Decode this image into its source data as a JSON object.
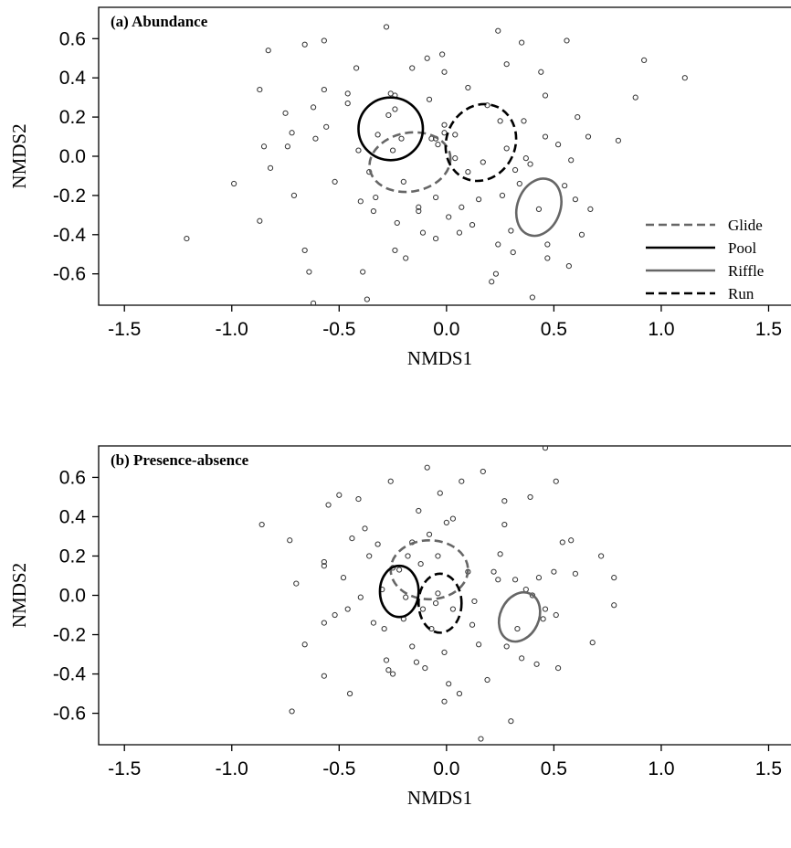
{
  "chart_data": [
    {
      "type": "scatter",
      "title": "(a) Abundance",
      "x_label": "NMDS1",
      "y_label": "NMDS2",
      "xlim": [
        -1.62,
        1.6
      ],
      "ylim": [
        -0.76,
        0.76
      ],
      "xticks": [
        -1.5,
        {
          "value": -1,
          "label": "-1.0"
        },
        -0.5,
        {
          "value": 0,
          "label": "0.0"
        },
        0.5,
        {
          "value": 1,
          "label": "1.0"
        },
        1.5
      ],
      "yticks": [
        -0.6,
        -0.4,
        -0.2,
        {
          "value": 0,
          "label": "0.0"
        },
        0.2,
        0.4,
        0.6
      ],
      "point_color": "#333333",
      "legend": "lower right",
      "x": [
        -1.21,
        -0.99,
        -0.87,
        -0.87,
        -0.85,
        -0.83,
        -0.82,
        -0.75,
        -0.74,
        -0.72,
        -0.71,
        -0.66,
        -0.66,
        -0.64,
        -0.62,
        -0.61,
        -0.62,
        -0.57,
        -0.57,
        -0.56,
        -0.52,
        -0.46,
        -0.46,
        -0.42,
        -0.41,
        -0.4,
        -0.39,
        -0.37,
        -0.36,
        -0.34,
        -0.33,
        -0.32,
        -0.28,
        -0.27,
        -0.26,
        -0.24,
        -0.24,
        -0.25,
        -0.24,
        -0.23,
        -0.21,
        -0.2,
        -0.19,
        -0.16,
        -0.13,
        -0.13,
        -0.11,
        -0.09,
        -0.08,
        -0.07,
        -0.05,
        -0.05,
        -0.05,
        -0.04,
        -0.02,
        -0.01,
        -0.01,
        -0.01,
        0.01,
        0.04,
        0.04,
        0.06,
        0.07,
        0.1,
        0.1,
        0.12,
        0.15,
        0.17,
        0.19,
        0.21,
        0.23,
        0.24,
        0.24,
        0.25,
        0.26,
        0.28,
        0.28,
        0.3,
        0.31,
        0.32,
        0.34,
        0.35,
        0.36,
        0.37,
        0.39,
        0.4,
        0.43,
        0.44,
        0.46,
        0.46,
        0.47,
        0.47,
        0.52,
        0.55,
        0.56,
        0.57,
        0.58,
        0.6,
        0.61,
        0.63,
        0.66,
        0.67,
        0.8,
        0.88,
        0.92,
        1.11
      ],
      "values": [
        -0.42,
        -0.14,
        0.34,
        -0.33,
        0.05,
        0.54,
        -0.06,
        0.22,
        0.05,
        0.12,
        -0.2,
        0.57,
        -0.48,
        -0.59,
        0.25,
        0.09,
        -0.75,
        0.59,
        0.34,
        0.15,
        -0.13,
        0.32,
        0.27,
        0.45,
        0.03,
        -0.23,
        -0.59,
        -0.73,
        -0.08,
        -0.28,
        -0.21,
        0.11,
        0.66,
        0.21,
        0.32,
        0.31,
        0.24,
        0.03,
        -0.48,
        -0.34,
        0.09,
        -0.13,
        -0.52,
        0.45,
        -0.28,
        -0.26,
        -0.39,
        0.5,
        0.29,
        0.09,
        0.09,
        -0.42,
        -0.21,
        0.06,
        0.52,
        0.43,
        0.16,
        0.12,
        -0.31,
        -0.01,
        0.11,
        -0.39,
        -0.26,
        0.35,
        -0.08,
        -0.35,
        -0.22,
        -0.03,
        0.26,
        -0.64,
        -0.6,
        0.64,
        -0.45,
        0.18,
        -0.2,
        0.47,
        0.04,
        -0.38,
        -0.49,
        -0.07,
        -0.14,
        0.58,
        0.18,
        -0.01,
        -0.04,
        -0.72,
        -0.27,
        0.43,
        0.31,
        0.1,
        -0.45,
        -0.52,
        0.06,
        -0.15,
        0.59,
        -0.56,
        -0.02,
        -0.22,
        0.2,
        -0.4,
        0.1,
        -0.27,
        0.08,
        0.3,
        0.49,
        0.4
      ],
      "ellipses": [
        {
          "name": "Glide",
          "color": "#666666",
          "line_style": "dashed",
          "cx": -0.17,
          "cy": -0.03,
          "rx": 0.19,
          "ry": 0.15,
          "angle": -10
        },
        {
          "name": "Pool",
          "color": "#000000",
          "line_style": "solid",
          "cx": -0.26,
          "cy": 0.14,
          "rx": 0.15,
          "ry": 0.16,
          "angle": 0
        },
        {
          "name": "Riffle",
          "color": "#666666",
          "line_style": "solid",
          "cx": 0.43,
          "cy": -0.26,
          "rx": 0.1,
          "ry": 0.15,
          "angle": 20
        },
        {
          "name": "Run",
          "color": "#000000",
          "line_style": "dashed",
          "cx": 0.16,
          "cy": 0.07,
          "rx": 0.16,
          "ry": 0.2,
          "angle": 25
        }
      ]
    },
    {
      "type": "scatter",
      "title": "(b) Presence-absence",
      "x_label": "NMDS1",
      "y_label": "NMDS2",
      "xlim": [
        -1.62,
        1.6
      ],
      "ylim": [
        -0.76,
        0.76
      ],
      "xticks": [
        -1.5,
        {
          "value": -1,
          "label": "-1.0"
        },
        -0.5,
        {
          "value": 0,
          "label": "0.0"
        },
        0.5,
        {
          "value": 1,
          "label": "1.0"
        },
        1.5
      ],
      "yticks": [
        -0.6,
        -0.4,
        -0.2,
        {
          "value": 0,
          "label": "0.0"
        },
        0.2,
        0.4,
        0.6
      ],
      "point_color": "#333333",
      "x": [
        -0.86,
        -0.73,
        -0.72,
        -0.7,
        -0.66,
        -0.57,
        -0.57,
        -0.57,
        -0.57,
        -0.55,
        -0.52,
        -0.5,
        -0.48,
        -0.46,
        -0.45,
        -0.44,
        -0.41,
        -0.4,
        -0.38,
        -0.36,
        -0.34,
        -0.32,
        -0.3,
        -0.29,
        -0.28,
        -0.27,
        -0.26,
        -0.25,
        -0.25,
        -0.22,
        -0.2,
        -0.19,
        -0.18,
        -0.16,
        -0.16,
        -0.14,
        -0.13,
        -0.12,
        -0.11,
        -0.1,
        -0.09,
        -0.08,
        -0.07,
        -0.05,
        -0.04,
        -0.04,
        -0.03,
        -0.01,
        -0.01,
        0,
        0.01,
        0.03,
        0.03,
        0.06,
        0.07,
        0.1,
        0.12,
        0.13,
        0.15,
        0.16,
        0.17,
        0.19,
        0.22,
        0.24,
        0.25,
        0.27,
        0.27,
        0.28,
        0.3,
        0.32,
        0.33,
        0.35,
        0.37,
        0.39,
        0.4,
        0.42,
        0.43,
        0.45,
        0.46,
        0.46,
        0.5,
        0.51,
        0.51,
        0.52,
        0.54,
        0.58,
        0.6,
        0.68,
        0.72,
        0.78,
        0.78
      ],
      "values": [
        0.36,
        0.28,
        -0.59,
        0.06,
        -0.25,
        0.17,
        0.15,
        -0.14,
        -0.41,
        0.46,
        -0.1,
        0.51,
        0.09,
        -0.07,
        -0.5,
        0.29,
        0.49,
        -0.01,
        0.34,
        0.2,
        -0.14,
        0.26,
        0.03,
        -0.17,
        -0.33,
        -0.38,
        0.58,
        0.14,
        -0.4,
        0.13,
        -0.12,
        -0.01,
        0.2,
        0.27,
        -0.26,
        -0.34,
        0.43,
        0.16,
        -0.07,
        -0.37,
        0.65,
        0.31,
        -0.17,
        -0.04,
        0.2,
        0.01,
        0.52,
        -0.29,
        -0.54,
        0.37,
        -0.45,
        -0.07,
        0.39,
        -0.5,
        0.58,
        0.12,
        -0.15,
        -0.03,
        -0.25,
        -0.73,
        0.63,
        -0.43,
        0.12,
        0.08,
        0.21,
        0.48,
        0.36,
        -0.26,
        -0.64,
        0.08,
        -0.17,
        -0.32,
        0.03,
        0.5,
        0,
        -0.35,
        0.09,
        -0.12,
        -0.07,
        0.75,
        0.12,
        -0.1,
        0.58,
        -0.37,
        0.27,
        0.28,
        0.11,
        -0.24,
        0.2,
        0.09,
        -0.05
      ],
      "ellipses": [
        {
          "name": "Glide",
          "color": "#666666",
          "line_style": "dashed",
          "cx": -0.08,
          "cy": 0.13,
          "rx": 0.18,
          "ry": 0.15,
          "angle": 0
        },
        {
          "name": "Pool",
          "color": "#000000",
          "line_style": "solid",
          "cx": -0.22,
          "cy": 0.02,
          "rx": 0.09,
          "ry": 0.13,
          "angle": 0
        },
        {
          "name": "Riffle",
          "color": "#666666",
          "line_style": "solid",
          "cx": 0.34,
          "cy": -0.11,
          "rx": 0.09,
          "ry": 0.13,
          "angle": 25
        },
        {
          "name": "Run",
          "color": "#000000",
          "line_style": "dashed",
          "cx": -0.03,
          "cy": -0.04,
          "rx": 0.1,
          "ry": 0.15,
          "angle": 0
        }
      ]
    }
  ]
}
